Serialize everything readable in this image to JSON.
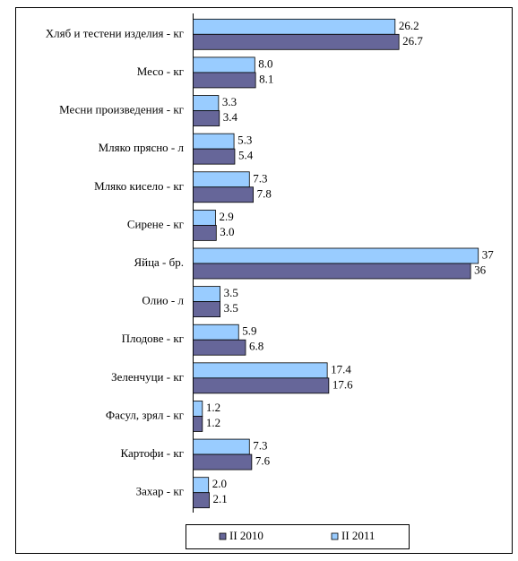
{
  "chart_data": {
    "type": "bar",
    "orientation": "horizontal",
    "categories": [
      "Хляб и тестени изделия - кг",
      "Месо - кг",
      "Месни произведения  - кг",
      "Мляко прясно - л",
      "Мляко кисело - кг",
      "Сирене - кг",
      "Яйца - бр.",
      "Олио - л",
      "Плодове - кг",
      "Зеленчуци  - кг",
      "Фасул, зрял - кг",
      "Картофи - кг",
      "Захар - кг"
    ],
    "series": [
      {
        "name": "II 2010",
        "color": "#666699",
        "values": [
          26.7,
          8.1,
          3.4,
          5.4,
          7.8,
          3.0,
          36,
          3.5,
          6.8,
          17.6,
          1.2,
          7.6,
          2.1
        ],
        "value_labels": [
          "26.7",
          "8.1",
          "3.4",
          "5.4",
          "7.8",
          "3.0",
          "36",
          "3.5",
          "6.8",
          "17.6",
          "1.2",
          "7.6",
          "2.1"
        ]
      },
      {
        "name": "II 2011",
        "color": "#99ccff",
        "values": [
          26.2,
          8.0,
          3.3,
          5.3,
          7.3,
          2.9,
          37,
          3.5,
          5.9,
          17.4,
          1.2,
          7.3,
          2.0
        ],
        "value_labels": [
          "26.2",
          "8.0",
          "3.3",
          "5.3",
          "7.3",
          "2.9",
          "37",
          "3.5",
          "5.9",
          "17.4",
          "1.2",
          "7.3",
          "2.0"
        ]
      }
    ],
    "xlim": [
      0,
      40
    ],
    "legend": "bottom"
  }
}
